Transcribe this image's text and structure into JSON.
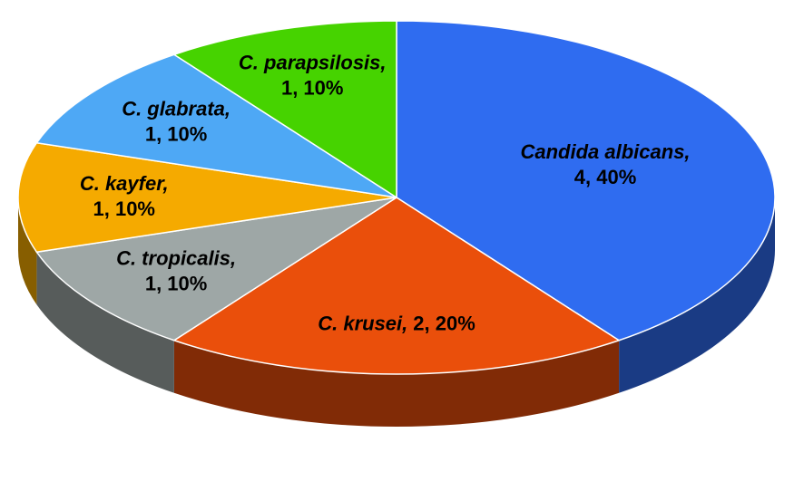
{
  "chart_data": {
    "type": "pie3d",
    "categories": [
      "Candida albicans,",
      "C. krusei,",
      "C. tropicalis,",
      "C. kayfer,",
      "C. glabrata,",
      "C. parapsilosis,"
    ],
    "values": [
      4,
      2,
      1,
      1,
      1,
      1
    ],
    "value_labels": [
      "4, 40%",
      "2, 20%",
      "1, 10%",
      "1, 10%",
      "1, 10%",
      "1, 10%"
    ],
    "colors": [
      "#2f6cf0",
      "#ea4f0b",
      "#9ea7a6",
      "#f5aa00",
      "#4ea8f5",
      "#46d300"
    ]
  }
}
